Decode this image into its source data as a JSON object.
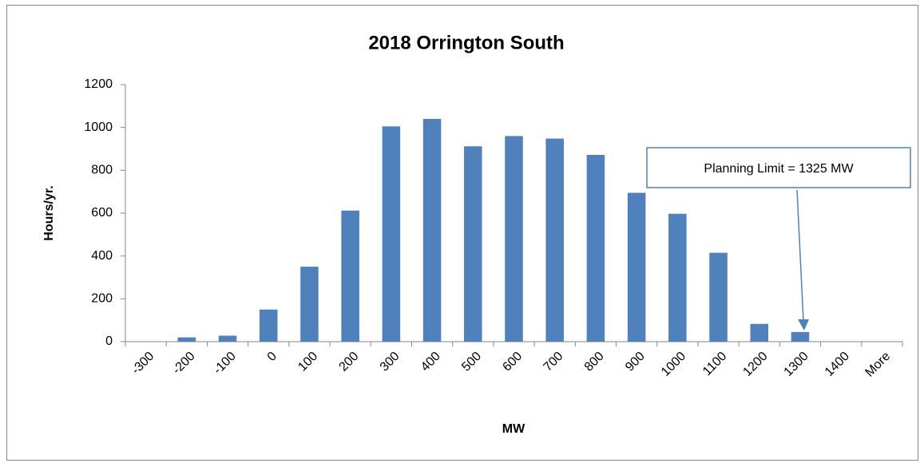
{
  "chart_data": {
    "type": "bar",
    "title": "2018 Orrington South",
    "x_label": "MW",
    "y_label": "Hours/yr.",
    "annotation": "Planning Limit = 1325 MW",
    "categories": [
      "-300",
      "-200",
      "-100",
      "0",
      "100",
      "200",
      "300",
      "400",
      "500",
      "600",
      "700",
      "800",
      "900",
      "1000",
      "1100",
      "1200",
      "1300",
      "1400",
      "More"
    ],
    "values": [
      0,
      20,
      28,
      150,
      350,
      612,
      1005,
      1040,
      912,
      960,
      948,
      872,
      695,
      597,
      415,
      83,
      45,
      0,
      0
    ],
    "color": "#4f81bd",
    "ylim": [
      0,
      1200
    ],
    "yticks": [
      0,
      200,
      400,
      600,
      800,
      1000,
      1200
    ],
    "grid": false
  }
}
